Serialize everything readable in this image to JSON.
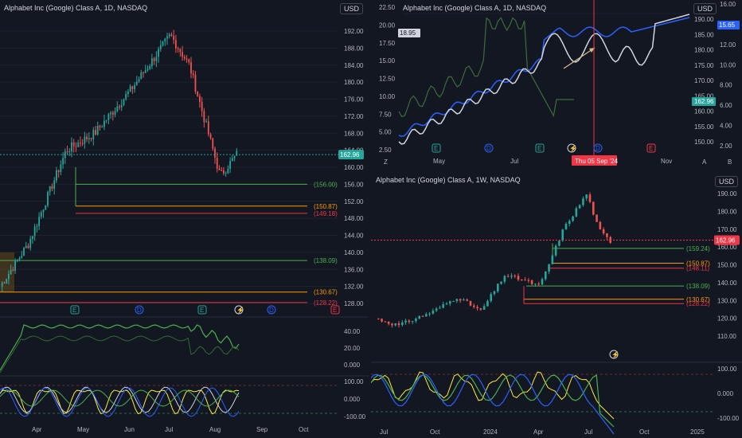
{
  "colors": {
    "bg": "#131722",
    "grid": "#1e222d",
    "up": "#26a69a",
    "down": "#ef5350",
    "green_level": "#4caf50",
    "orange_level": "#ff9800",
    "red_level": "#f23645",
    "blue": "#2962ff",
    "white": "#d1d4dc",
    "yellow": "#ffeb3b",
    "dim_green": "#3d6b3a",
    "tag_red": "#f23645",
    "tag_green": "#26a69a"
  },
  "left": {
    "title": "Alphabet Inc (Google) Class A, 1D, NASDAQ",
    "currency": "USD",
    "price_ticks": [
      "192.00",
      "188.00",
      "184.00",
      "180.00",
      "176.00",
      "172.00",
      "168.00",
      "164.00",
      "160.00",
      "156.00",
      "152.00",
      "148.00",
      "144.00",
      "140.00",
      "136.00",
      "132.00",
      "128.00"
    ],
    "last_price": "162.96",
    "levels": [
      {
        "label": "(156.00)",
        "value": 156.0,
        "color": "green"
      },
      {
        "label": "(150.87)",
        "value": 150.87,
        "color": "orange"
      },
      {
        "label": "(149.18)",
        "value": 149.18,
        "color": "red"
      },
      {
        "label": "(138.09)",
        "value": 138.09,
        "color": "green"
      },
      {
        "label": "(130.67)",
        "value": 130.67,
        "color": "orange"
      },
      {
        "label": "(128.22)",
        "value": 128.22,
        "color": "red"
      }
    ],
    "events": [
      "E",
      "D",
      "E",
      "⚡",
      "D",
      "E"
    ],
    "ind1_ticks": [
      "40.00",
      "20.00",
      "0.000"
    ],
    "ind2_ticks": [
      "100.00",
      "0.000",
      "-100.00"
    ],
    "months": [
      "Apr",
      "May",
      "Jun",
      "Jul",
      "Aug",
      "Sep",
      "Oct"
    ]
  },
  "top_right": {
    "title": "Alphabet Inc (Google) Class A, 1D, NASDAQ",
    "currency": "USD",
    "left_ticks": [
      "22.50",
      "20.00",
      "17.50",
      "15.00",
      "12.50",
      "10.00",
      "7.50",
      "5.00",
      "2.50"
    ],
    "left_tag": "18.95",
    "right_ticks_outer": [
      "16.00",
      "14.00",
      "12.00",
      "10.00",
      "8.00",
      "6.00",
      "4.00",
      "2.00"
    ],
    "right_ticks_inner": [
      "190.00",
      "185.00",
      "180.00",
      "175.00",
      "170.00",
      "165.00",
      "160.00",
      "155.00",
      "150.00"
    ],
    "blue_tag": "15.65",
    "price_tag": "162.96",
    "months": [
      "May",
      "Jul",
      "Sep",
      "Nov"
    ],
    "crosshair_date": "Thu 05 Sep '24",
    "events": [
      "E",
      "D",
      "E",
      "⚡",
      "D",
      "E"
    ],
    "corner_left": "Z",
    "corner_right": [
      "A",
      "B"
    ]
  },
  "bottom_right": {
    "title": "Alphabet Inc (Google) Class A, 1W, NASDAQ",
    "currency": "USD",
    "price_ticks": [
      "190.00",
      "180.00",
      "170.00",
      "160.00",
      "150.00",
      "140.00",
      "130.00",
      "120.00",
      "110.00"
    ],
    "last_price": "162.96",
    "levels": [
      {
        "label": "(159.24)",
        "value": 159.24,
        "color": "green"
      },
      {
        "label": "(150.87)",
        "value": 150.87,
        "color": "orange"
      },
      {
        "label": "(148.11)",
        "value": 148.11,
        "color": "red"
      },
      {
        "label": "(138.09)",
        "value": 138.09,
        "color": "green"
      },
      {
        "label": "(130.67)",
        "value": 130.67,
        "color": "orange"
      },
      {
        "label": "(128.22)",
        "value": 128.22,
        "color": "red"
      }
    ],
    "event": "⚡",
    "osc_ticks": [
      "100.00",
      "0.000",
      "-100.00"
    ],
    "months": [
      "Jul",
      "Oct",
      "2024",
      "Apr",
      "Jul",
      "Oct",
      "2025"
    ]
  }
}
